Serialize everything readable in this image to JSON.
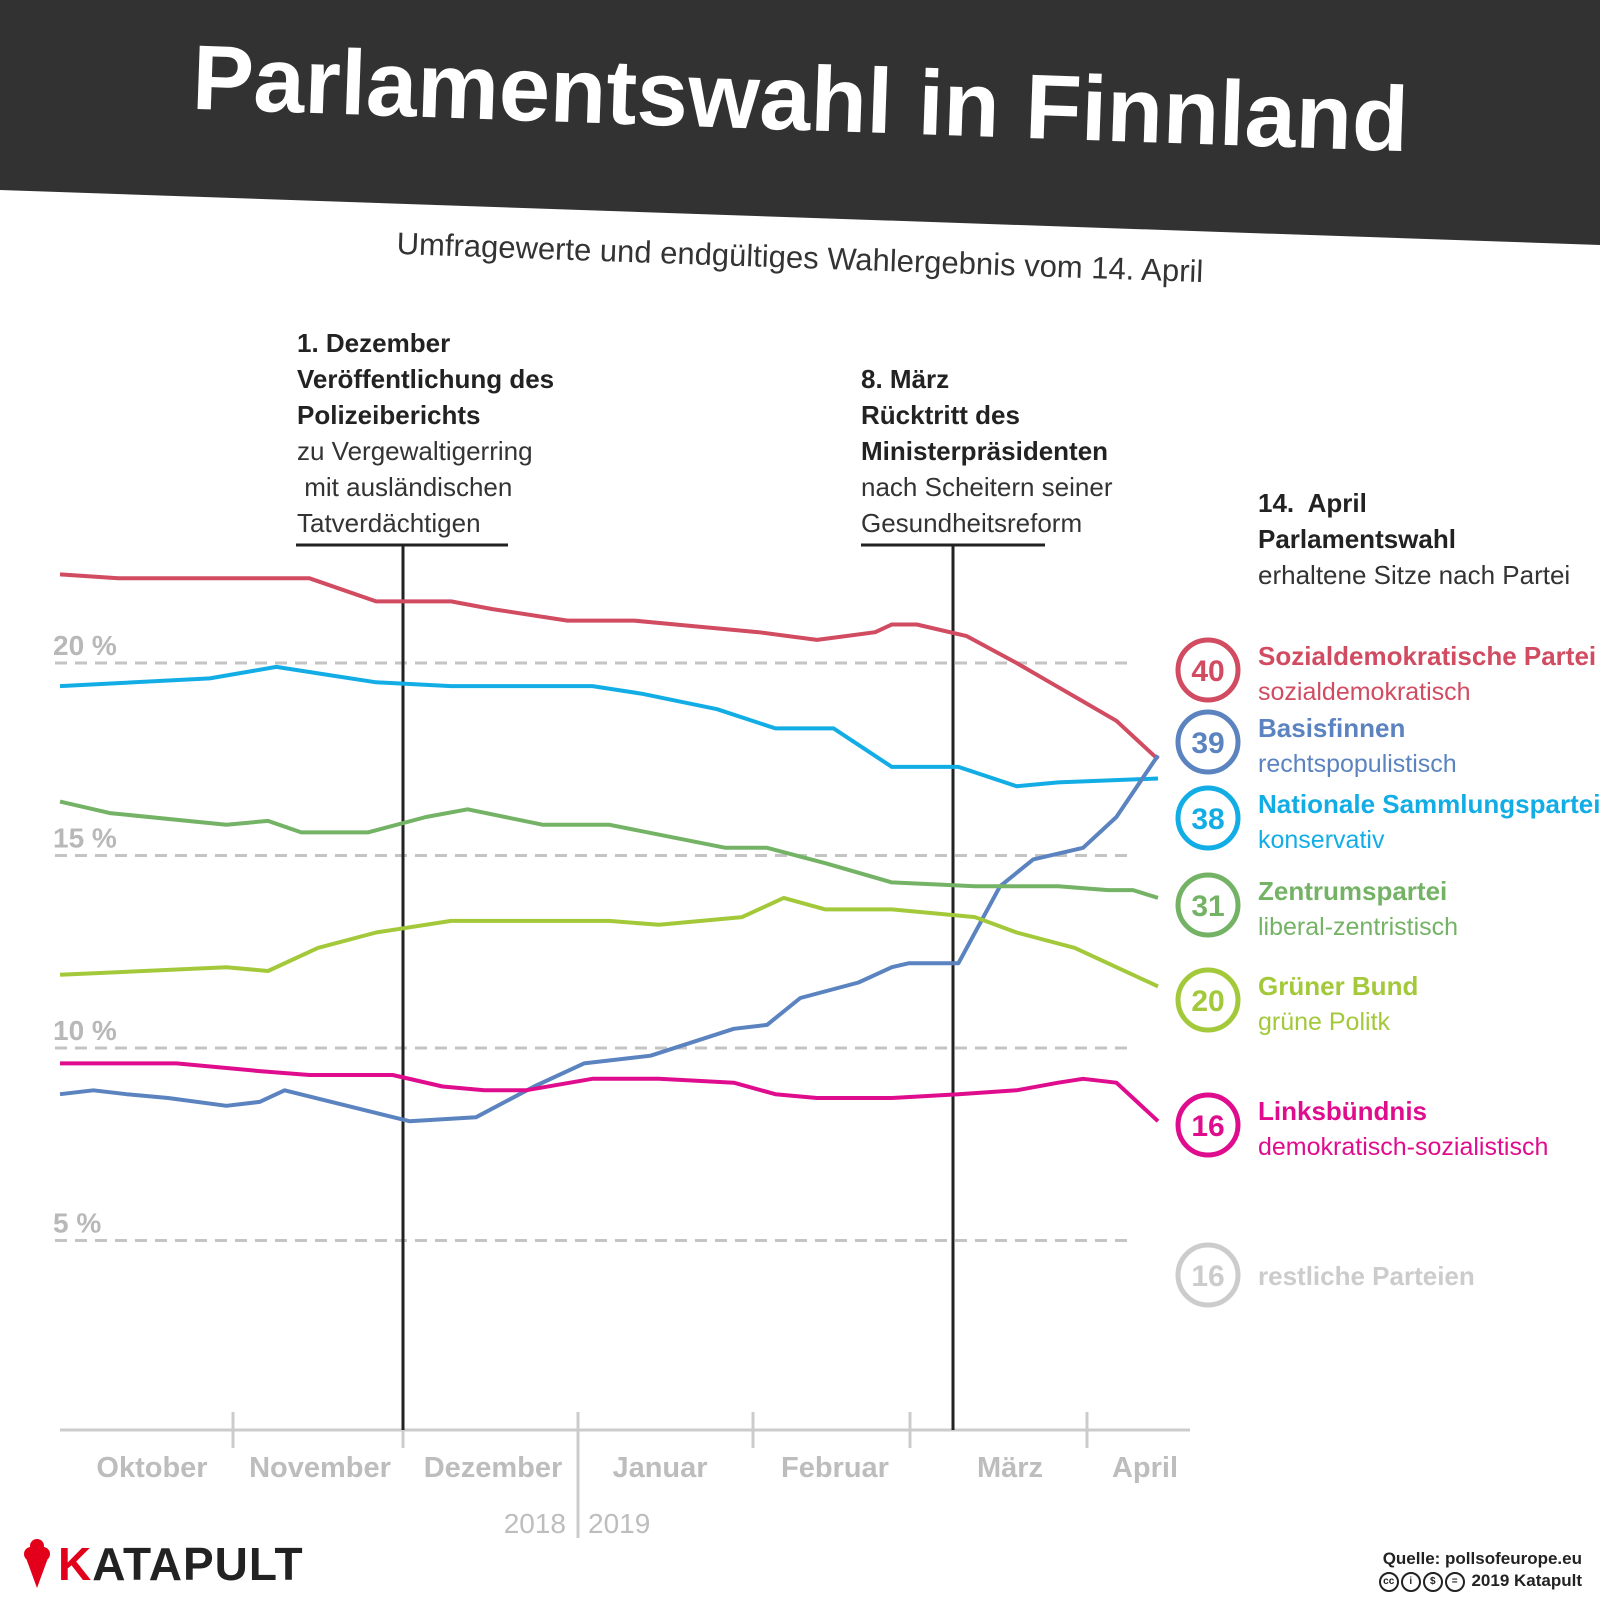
{
  "header": {
    "title": "Parlamentswahl in Finnland",
    "subtitle": "Umfragewerte und endgültiges Wahlergebnis vom 14. April"
  },
  "annotations": [
    {
      "date": "1. Dezember",
      "headline": [
        "Veröffentlichung des",
        "Polizeiberichts"
      ],
      "text": [
        "zu Vergewaltigerring",
        " mit ausländischen",
        "Tatverdächtigen"
      ]
    },
    {
      "date": "8. März",
      "headline": [
        "Rücktritt des",
        "Ministerpräsidenten"
      ],
      "text": [
        "nach Scheitern seiner",
        "Gesundheitsreform"
      ]
    }
  ],
  "result_header": {
    "date": "14.  April",
    "title": "Parlamentswahl",
    "text": "erhaltene Sitze nach Partei"
  },
  "parties": [
    {
      "name": "Sozialdemokratische Partei",
      "desc": "sozialdemokratisch",
      "seats": "40",
      "color": "#d14b61"
    },
    {
      "name": "Basisfinnen",
      "desc": "rechtspopulistisch",
      "seats": "39",
      "color": "#5a83c0"
    },
    {
      "name": "Nationale Sammlungspartei",
      "desc": "konservativ",
      "seats": "38",
      "color": "#13ade6"
    },
    {
      "name": "Zentrumspartei",
      "desc": "liberal-zentristisch",
      "seats": "31",
      "color": "#74b366"
    },
    {
      "name": "Grüner Bund",
      "desc": "grüne Politk",
      "seats": "20",
      "color": "#a3c93b"
    },
    {
      "name": "Linksbündnis",
      "desc": "demokratisch-sozialistisch",
      "seats": "16",
      "color": "#df0d8e"
    },
    {
      "name": "restliche Parteien",
      "desc": "",
      "seats": "16",
      "color": "#cccccc"
    }
  ],
  "chart_data": {
    "type": "line",
    "ylim": [
      0,
      23.5
    ],
    "yticks": [
      5,
      10,
      15,
      20
    ],
    "ytick_labels": [
      "5 %",
      "10 %",
      "15 %",
      "20 %"
    ],
    "months": [
      "Oktober",
      "November",
      "Dezember",
      "Januar",
      "Februar",
      "März",
      "April"
    ],
    "years": [
      "2018",
      "2019"
    ],
    "grid": "dashed-horizontal",
    "series": [
      {
        "name": "Sozialdemokratische Partei",
        "color": "#d14b61",
        "x": [
          0,
          0.35,
          1.5,
          1.9,
          2.35,
          2.6,
          3.05,
          3.45,
          3.7,
          4.2,
          4.55,
          4.9,
          5.0,
          5.15,
          5.45,
          5.75,
          5.95,
          6.15,
          6.35,
          6.6
        ],
        "y": [
          22.3,
          22.2,
          22.2,
          21.6,
          21.6,
          21.4,
          21.1,
          21.1,
          21.0,
          20.8,
          20.6,
          20.8,
          21.0,
          21.0,
          20.7,
          20.0,
          19.5,
          19.0,
          18.5,
          17.5
        ]
      },
      {
        "name": "Nationale Sammlungspartei",
        "color": "#13ade6",
        "x": [
          0,
          0.9,
          1.3,
          1.6,
          1.9,
          2.35,
          2.55,
          3.2,
          3.5,
          3.95,
          4.3,
          4.65,
          5.0,
          5.4,
          5.75,
          6.0,
          6.6
        ],
        "y": [
          19.4,
          19.6,
          19.9,
          19.7,
          19.5,
          19.4,
          19.4,
          19.4,
          19.2,
          18.8,
          18.3,
          18.3,
          17.3,
          17.3,
          16.8,
          16.9,
          17.0
        ]
      },
      {
        "name": "Basisfinnen",
        "color": "#5a83c0",
        "x": [
          0,
          0.2,
          0.4,
          0.65,
          1.0,
          1.2,
          1.35,
          2.1,
          2.5,
          2.85,
          3.15,
          3.55,
          4.05,
          4.25,
          4.45,
          4.8,
          5.0,
          5.1,
          5.4,
          5.65,
          5.85,
          6.15,
          6.35,
          6.6
        ],
        "y": [
          8.8,
          8.9,
          8.8,
          8.7,
          8.5,
          8.6,
          8.9,
          8.1,
          8.2,
          9.0,
          9.6,
          9.8,
          10.5,
          10.6,
          11.3,
          11.7,
          12.1,
          12.2,
          12.2,
          14.2,
          14.9,
          15.2,
          16.0,
          17.6
        ]
      },
      {
        "name": "Zentrumspartei",
        "color": "#74b366",
        "x": [
          0,
          0.3,
          1.0,
          1.25,
          1.45,
          1.85,
          2.2,
          2.45,
          2.9,
          3.3,
          4.0,
          4.25,
          4.6,
          5.0,
          5.5,
          6.0,
          6.3,
          6.45,
          6.6
        ],
        "y": [
          16.4,
          16.1,
          15.8,
          15.9,
          15.6,
          15.6,
          16.0,
          16.2,
          15.8,
          15.8,
          15.2,
          15.2,
          14.8,
          14.3,
          14.2,
          14.2,
          14.1,
          14.1,
          13.9
        ]
      },
      {
        "name": "Grüner Bund",
        "color": "#a3c93b",
        "x": [
          0,
          1.0,
          1.25,
          1.55,
          1.9,
          2.35,
          2.85,
          3.3,
          3.6,
          4.1,
          4.35,
          4.6,
          5.0,
          5.5,
          5.75,
          6.1,
          6.6
        ],
        "y": [
          11.9,
          12.1,
          12.0,
          12.6,
          13.0,
          13.3,
          13.3,
          13.3,
          13.2,
          13.4,
          13.9,
          13.6,
          13.6,
          13.4,
          13.0,
          12.6,
          11.6
        ]
      },
      {
        "name": "Linksbündnis",
        "color": "#df0d8e",
        "x": [
          0,
          0.7,
          1.2,
          1.5,
          2.0,
          2.3,
          2.55,
          2.8,
          3.2,
          3.6,
          4.05,
          4.3,
          4.55,
          5.0,
          5.4,
          5.75,
          6.0,
          6.15,
          6.35,
          6.6
        ],
        "y": [
          9.6,
          9.6,
          9.4,
          9.3,
          9.3,
          9.0,
          8.9,
          8.9,
          9.2,
          9.2,
          9.1,
          8.8,
          8.7,
          8.7,
          8.8,
          8.9,
          9.1,
          9.2,
          9.1,
          8.1
        ]
      }
    ]
  },
  "footer": {
    "logo": "KATAPULT",
    "source": "Quelle: pollsofeurope.eu",
    "copyright": "2019 Katapult"
  }
}
